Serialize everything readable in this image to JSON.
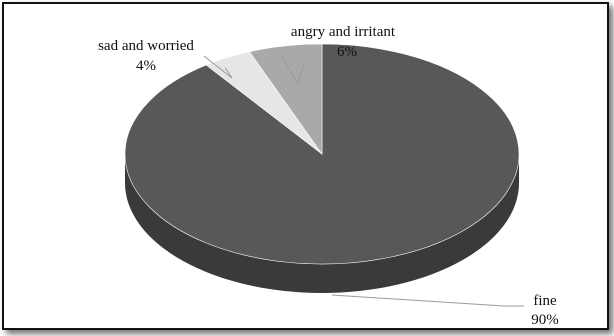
{
  "chart_data": {
    "type": "pie",
    "style": "3d",
    "categories": [
      "fine",
      "sad and worried",
      "angry and irritant"
    ],
    "values": [
      90,
      4,
      6
    ],
    "labels": [
      {
        "name": "fine",
        "pct": "90%"
      },
      {
        "name": "sad and worried",
        "pct": "4%"
      },
      {
        "name": "angry and irritant",
        "pct": "6%"
      }
    ],
    "colors": [
      "#585858",
      "#e6e6e6",
      "#a9a9a9"
    ],
    "side_colors": [
      "#3a3a3a",
      "#c8c8c8",
      "#8a8a8a"
    ],
    "legend": "none",
    "title": ""
  }
}
